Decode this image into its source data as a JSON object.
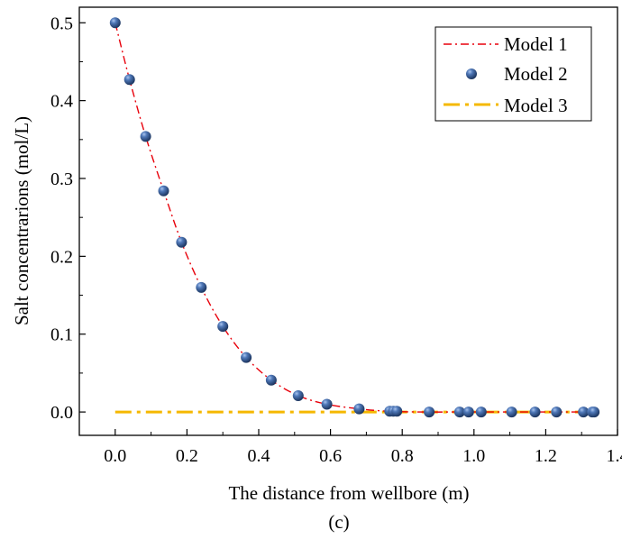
{
  "chart_data": {
    "type": "line",
    "title": "",
    "caption": "(c)",
    "xlabel": "The distance from wellbore (m)",
    "ylabel": "Salt concentrarions (mol/L)",
    "xlim": [
      -0.1,
      1.4
    ],
    "ylim": [
      -0.03,
      0.52
    ],
    "xticks": [
      0.0,
      0.2,
      0.4,
      0.6,
      0.8,
      1.0,
      1.2,
      1.4
    ],
    "xtick_labels": [
      "0.0",
      "0.2",
      "0.4",
      "0.6",
      "0.8",
      "1.0",
      "1.2",
      "1.4"
    ],
    "yticks": [
      0.0,
      0.1,
      0.2,
      0.3,
      0.4,
      0.5
    ],
    "ytick_labels": [
      "0.0",
      "0.1",
      "0.2",
      "0.3",
      "0.4",
      "0.5"
    ],
    "grid": false,
    "legend_position": "top-right",
    "series": [
      {
        "name": "Model 1",
        "style": "dash-dot-line",
        "color": "#e8000b",
        "x": [
          0.0,
          0.04,
          0.085,
          0.135,
          0.185,
          0.24,
          0.3,
          0.365,
          0.435,
          0.51,
          0.59,
          0.68,
          0.76,
          0.85,
          0.95,
          1.05,
          1.15,
          1.25,
          1.34
        ],
        "y": [
          0.5,
          0.427,
          0.354,
          0.284,
          0.218,
          0.16,
          0.11,
          0.07,
          0.041,
          0.021,
          0.01,
          0.004,
          0.001,
          0.0,
          0.0,
          0.0,
          0.0,
          0.0,
          0.0
        ]
      },
      {
        "name": "Model 2",
        "style": "markers",
        "color": "#2f4f8f",
        "x": [
          0.0,
          0.04,
          0.085,
          0.135,
          0.185,
          0.24,
          0.3,
          0.365,
          0.435,
          0.51,
          0.59,
          0.68,
          0.765,
          0.775,
          0.785,
          0.875,
          0.96,
          0.985,
          1.02,
          1.105,
          1.17,
          1.23,
          1.305,
          1.33,
          1.335
        ],
        "y": [
          0.5,
          0.427,
          0.354,
          0.284,
          0.218,
          0.16,
          0.11,
          0.07,
          0.041,
          0.021,
          0.01,
          0.004,
          0.001,
          0.001,
          0.001,
          0.0,
          0.0,
          0.0,
          0.0,
          0.0,
          0.0,
          0.0,
          0.0,
          0.0,
          0.0
        ]
      },
      {
        "name": "Model 3",
        "style": "dash-dot-thick",
        "color": "#f5b800",
        "x": [
          0.0,
          1.34
        ],
        "y": [
          0.0,
          0.0
        ]
      }
    ]
  }
}
